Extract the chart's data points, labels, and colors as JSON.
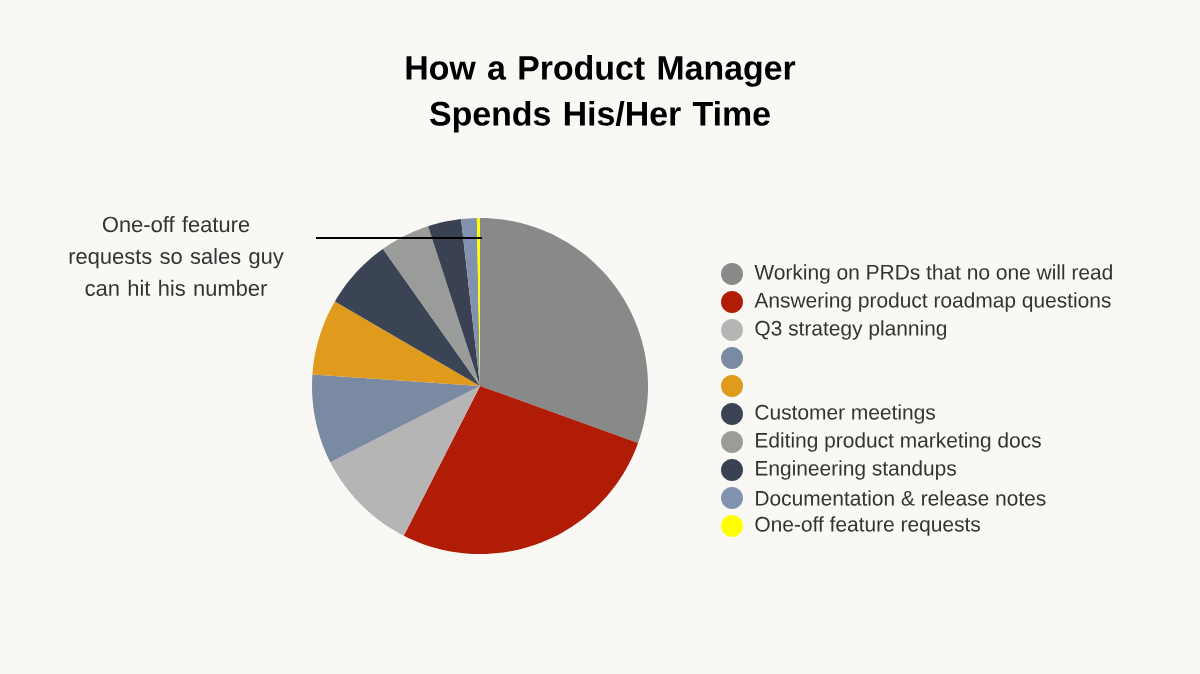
{
  "chart_data": {
    "type": "pie",
    "title": "How a Product Manager Spends His/Her Time",
    "categories": [
      "Working on PRDs that no one will read",
      "Answering product roadmap questions",
      "Q3 strategy planning",
      null,
      null,
      "Customer meetings",
      "Editing product marketing docs",
      "Engineering standups",
      "Documentation & release notes",
      "One-off feature requests"
    ],
    "values": [
      30.5,
      27,
      10,
      8.6,
      7.3,
      6.8,
      4.8,
      3.2,
      1.5,
      0.3
    ],
    "colors": [
      "#878a88",
      "#b01c06",
      "#b5b5b5",
      "#7a8aa3",
      "#e09a1c",
      "#3b4454",
      "#9a9c9a",
      "#394152",
      "#8092ae",
      "#ffff00"
    ],
    "legend": "right",
    "annotations": [
      "One-off feature requests so sales guy can hit his number"
    ]
  }
}
